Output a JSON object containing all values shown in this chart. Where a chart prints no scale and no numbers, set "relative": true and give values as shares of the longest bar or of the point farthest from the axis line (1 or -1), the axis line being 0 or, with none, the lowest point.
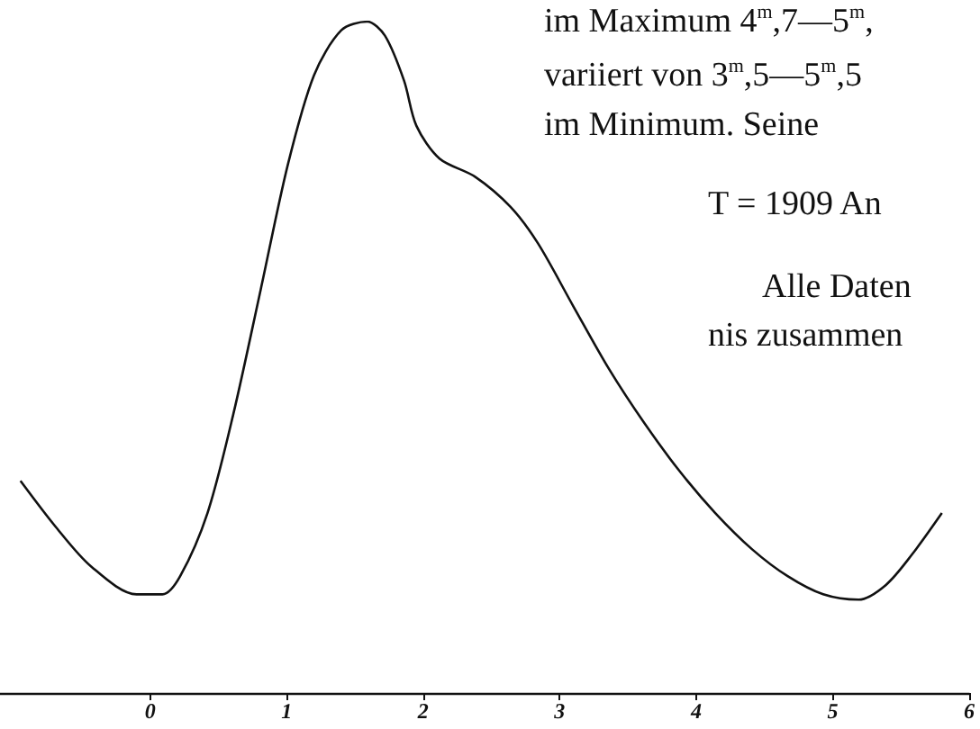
{
  "chart_data": {
    "type": "line",
    "relative": true,
    "color": "#111111",
    "marker": "none",
    "grid": false,
    "tick_labels": "x",
    "x": [
      -0.95,
      -0.69,
      -0.43,
      -0.1,
      0.09,
      0.22,
      0.42,
      0.61,
      0.81,
      1.01,
      1.2,
      1.4,
      1.59,
      1.72,
      1.86,
      1.95,
      2.12,
      2.38,
      2.64,
      2.84,
      3.1,
      3.36,
      3.62,
      3.88,
      4.14,
      4.41,
      4.67,
      4.93,
      5.19,
      5.39,
      5.58,
      5.8
    ],
    "values": [
      0.316,
      0.247,
      0.188,
      0.147,
      0.147,
      0.174,
      0.268,
      0.416,
      0.601,
      0.788,
      0.92,
      0.987,
      1,
      0.979,
      0.912,
      0.845,
      0.796,
      0.769,
      0.724,
      0.67,
      0.576,
      0.483,
      0.402,
      0.33,
      0.268,
      0.214,
      0.174,
      0.147,
      0.139,
      0.161,
      0.206,
      0.268
    ],
    "xlim": [
      -1.1,
      6
    ],
    "xticks": [
      0,
      1,
      2,
      3,
      4,
      5,
      6
    ],
    "annotations": [
      "im Maximum 4$^{m}$,7—5$^{m}$,",
      "variiert von 3$^{m}$,5—5$^{m}$,5",
      "im Minimum. Seine",
      "T = 1909 An",
      "Alle Daten",
      "nis zusammen"
    ]
  }
}
